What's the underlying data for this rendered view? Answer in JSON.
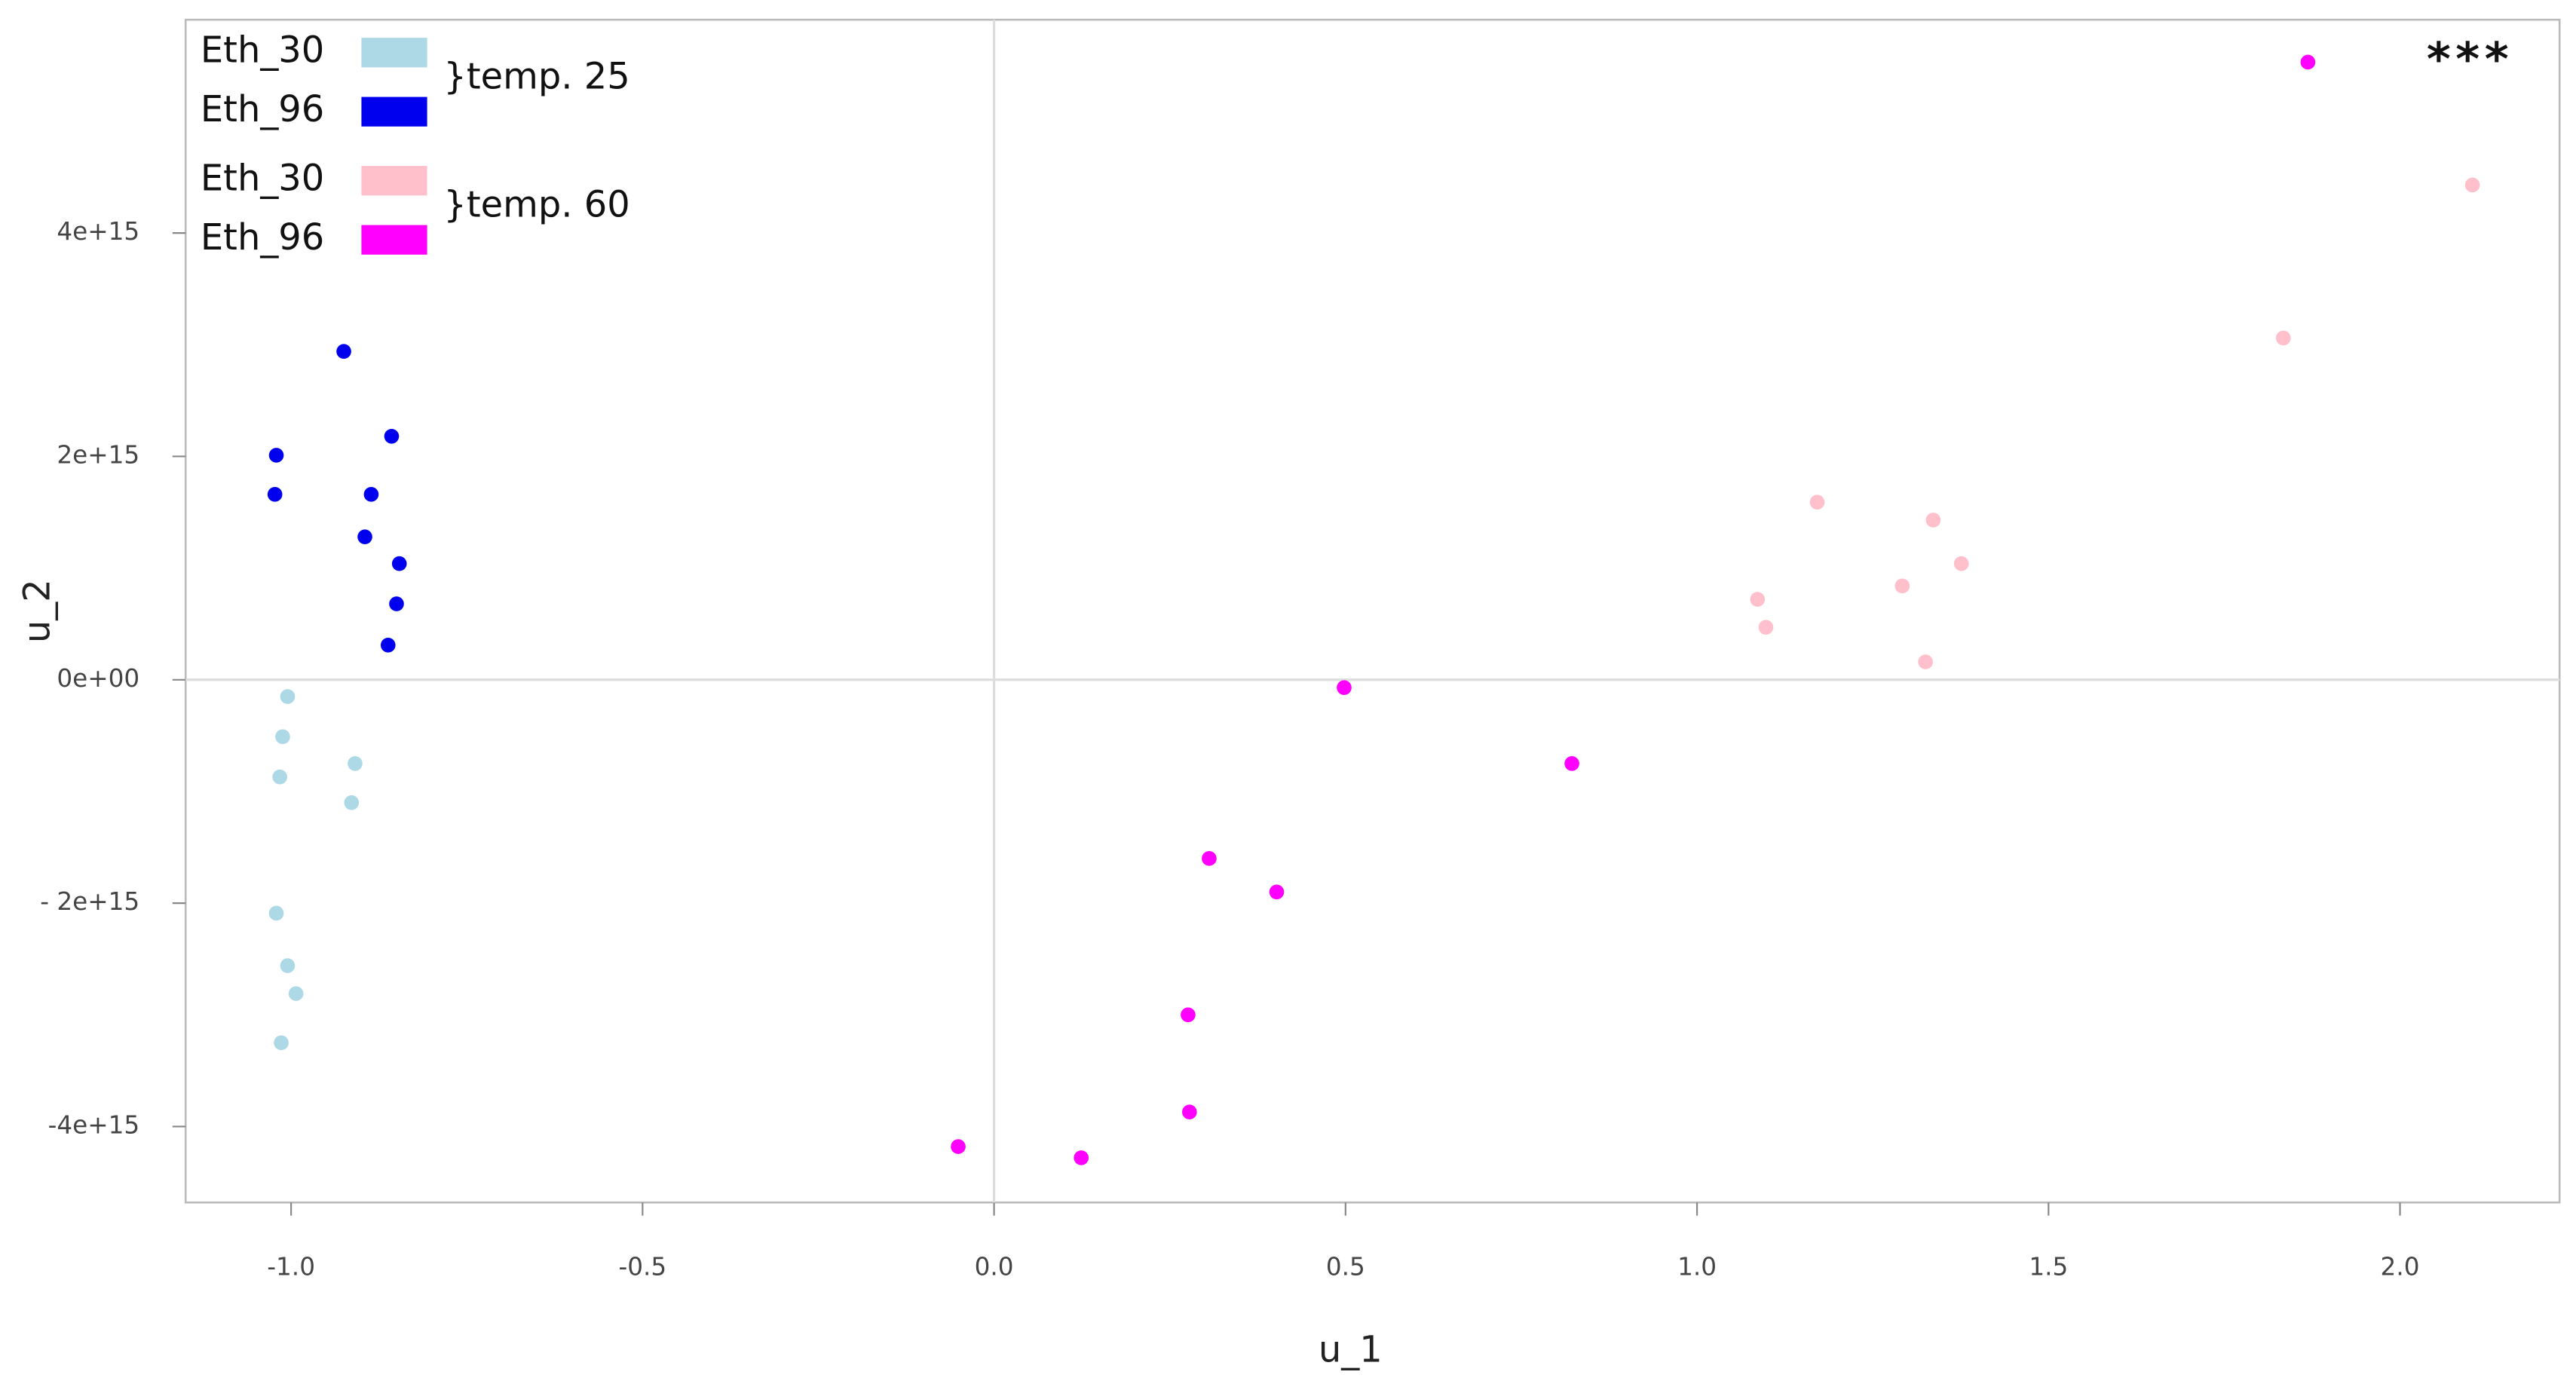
{
  "chart_data": {
    "type": "scatter",
    "xlabel": "u_1",
    "ylabel": "u_2",
    "annotation": "***",
    "xlim": [
      -1.15,
      2.227
    ],
    "ylim": [
      -4680000000000000.0,
      5910000000000000.0
    ],
    "xticks": [
      {
        "value": -1,
        "label": "-1.0"
      },
      {
        "value": -0.5,
        "label": "-0.5"
      },
      {
        "value": 0,
        "label": "0.0"
      },
      0.5,
      {
        "value": 1,
        "label": "1.0"
      },
      1.5,
      {
        "value": 2,
        "label": "2.0"
      }
    ],
    "yticks": [
      {
        "value": -4000000000000000.0,
        "label": "-4e+15"
      },
      {
        "value": -2000000000000000.0,
        "label": "- 2e+15"
      },
      {
        "value": 0,
        "label": "0e+00"
      },
      {
        "value": 2000000000000000.0,
        "label": "2e+15"
      },
      {
        "value": 4000000000000000.0,
        "label": "4e+15"
      }
    ],
    "zero_lines": true,
    "legend_position": "top-left",
    "legend_groups": [
      "temp. 25",
      "temp. 60"
    ],
    "series": [
      {
        "name": "Eth_30",
        "color": "#add8e6",
        "x": [
          -1.005,
          -1.012,
          -1.016,
          -0.909,
          -0.914,
          -1.021,
          -1.005,
          -0.993,
          -1.014
        ],
        "values": [
          -150000000000000.0,
          -510000000000000.0,
          -870000000000000.0,
          -750000000000000.0,
          -1100000000000000.0,
          -2090000000000000.0,
          -2560000000000000.0,
          -2810000000000000.0,
          -3250000000000000.0
        ]
      },
      {
        "name": "Eth_96",
        "color": "#0000ee",
        "x": [
          -0.925,
          -1.021,
          -0.857,
          -1.023,
          -0.886,
          -0.895,
          -0.846,
          -0.85,
          -0.862
        ],
        "values": [
          2940000000000000.0,
          2010000000000000.0,
          2180000000000000.0,
          1660000000000000.0,
          1660000000000000.0,
          1280000000000000.0,
          1040000000000000.0,
          680000000000000.0,
          310000000000000.0
        ]
      },
      {
        "name": "Eth_30",
        "color": "#ffc0cb",
        "x": [
          2.103,
          1.834,
          1.171,
          1.336,
          1.376,
          1.292,
          1.086,
          1.098,
          1.325
        ],
        "values": [
          4430000000000000.0,
          3060000000000000.0,
          1590000000000000.0,
          1430000000000000.0,
          1040000000000000.0,
          840000000000000.0,
          720000000000000.0,
          470000000000000.0,
          160000000000000.0
        ]
      },
      {
        "name": "Eth_96",
        "color": "#ff00ff",
        "x": [
          1.869,
          0.498,
          0.822,
          0.306,
          0.402,
          0.276,
          0.278,
          -0.051,
          0.124
        ],
        "values": [
          5530000000000000.0,
          -70000000000000.0,
          -750000000000000.0,
          -1600000000000000.0,
          -1900000000000000.0,
          -3000000000000000.0,
          -3870000000000000.0,
          -4180000000000000.0,
          -4280000000000000.0
        ]
      }
    ]
  }
}
